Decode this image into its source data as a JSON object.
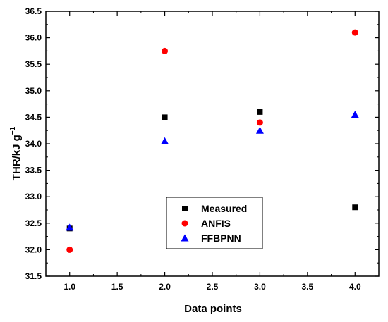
{
  "chart_data": {
    "type": "scatter",
    "title": "",
    "xlabel": "Data points",
    "ylabel": "THR/kJ g",
    "ylabel_sup": "−1",
    "xlim": [
      0.75,
      4.25
    ],
    "ylim": [
      31.5,
      36.5
    ],
    "x_ticks": [
      "1.0",
      "1.5",
      "2.0",
      "2.5",
      "3.0",
      "3.5",
      "4.0"
    ],
    "y_ticks": [
      "31.5",
      "32.0",
      "32.5",
      "33.0",
      "33.5",
      "34.0",
      "34.5",
      "35.0",
      "35.5",
      "36.0",
      "36.5"
    ],
    "grid": false,
    "legend_position": "center",
    "series": [
      {
        "name": "Measured",
        "marker": "square",
        "color": "#000000",
        "x": [
          1,
          2,
          3,
          4
        ],
        "y": [
          32.4,
          34.5,
          34.6,
          32.8
        ]
      },
      {
        "name": "ANFIS",
        "marker": "circle",
        "color": "#ff0000",
        "x": [
          1,
          2,
          3,
          4
        ],
        "y": [
          32.0,
          35.75,
          34.4,
          36.1
        ]
      },
      {
        "name": "FFBPNN",
        "marker": "triangle",
        "color": "#0000ff",
        "x": [
          1,
          2,
          3,
          4
        ],
        "y": [
          32.42,
          34.05,
          34.25,
          34.55
        ]
      }
    ]
  }
}
